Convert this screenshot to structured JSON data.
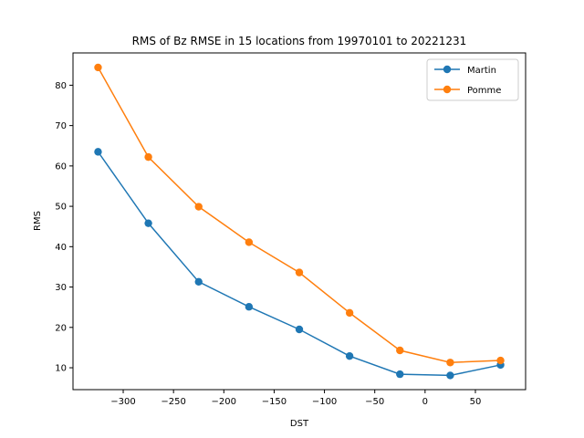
{
  "chart_data": {
    "type": "line",
    "title": "RMS of Bz RMSE in 15 locations from 19970101 to 20221231",
    "xlabel": "DST",
    "ylabel": "RMS",
    "x": [
      -325,
      -275,
      -225,
      -175,
      -125,
      -75,
      -25,
      25,
      75
    ],
    "xlim": [
      -349.9,
      99.9
    ],
    "ylim": [
      4.58,
      88.0
    ],
    "xticks": [
      -300,
      -250,
      -200,
      -150,
      -100,
      -50,
      0,
      50
    ],
    "xtick_labels": [
      "−300",
      "−250",
      "−200",
      "−150",
      "−100",
      "−50",
      "0",
      "50"
    ],
    "yticks": [
      10,
      20,
      30,
      40,
      50,
      60,
      70,
      80
    ],
    "ytick_labels": [
      "10",
      "20",
      "30",
      "40",
      "50",
      "60",
      "70",
      "80"
    ],
    "grid": false,
    "legend_position": "top-right",
    "series": [
      {
        "name": "Martin",
        "color": "#1f77b4",
        "values": [
          63.5,
          45.8,
          31.3,
          25.1,
          19.5,
          12.9,
          8.4,
          8.1,
          10.7
        ]
      },
      {
        "name": "Pomme",
        "color": "#ff7f0e",
        "values": [
          84.4,
          62.2,
          49.9,
          41.1,
          33.6,
          23.6,
          14.3,
          11.3,
          11.8
        ]
      }
    ]
  }
}
